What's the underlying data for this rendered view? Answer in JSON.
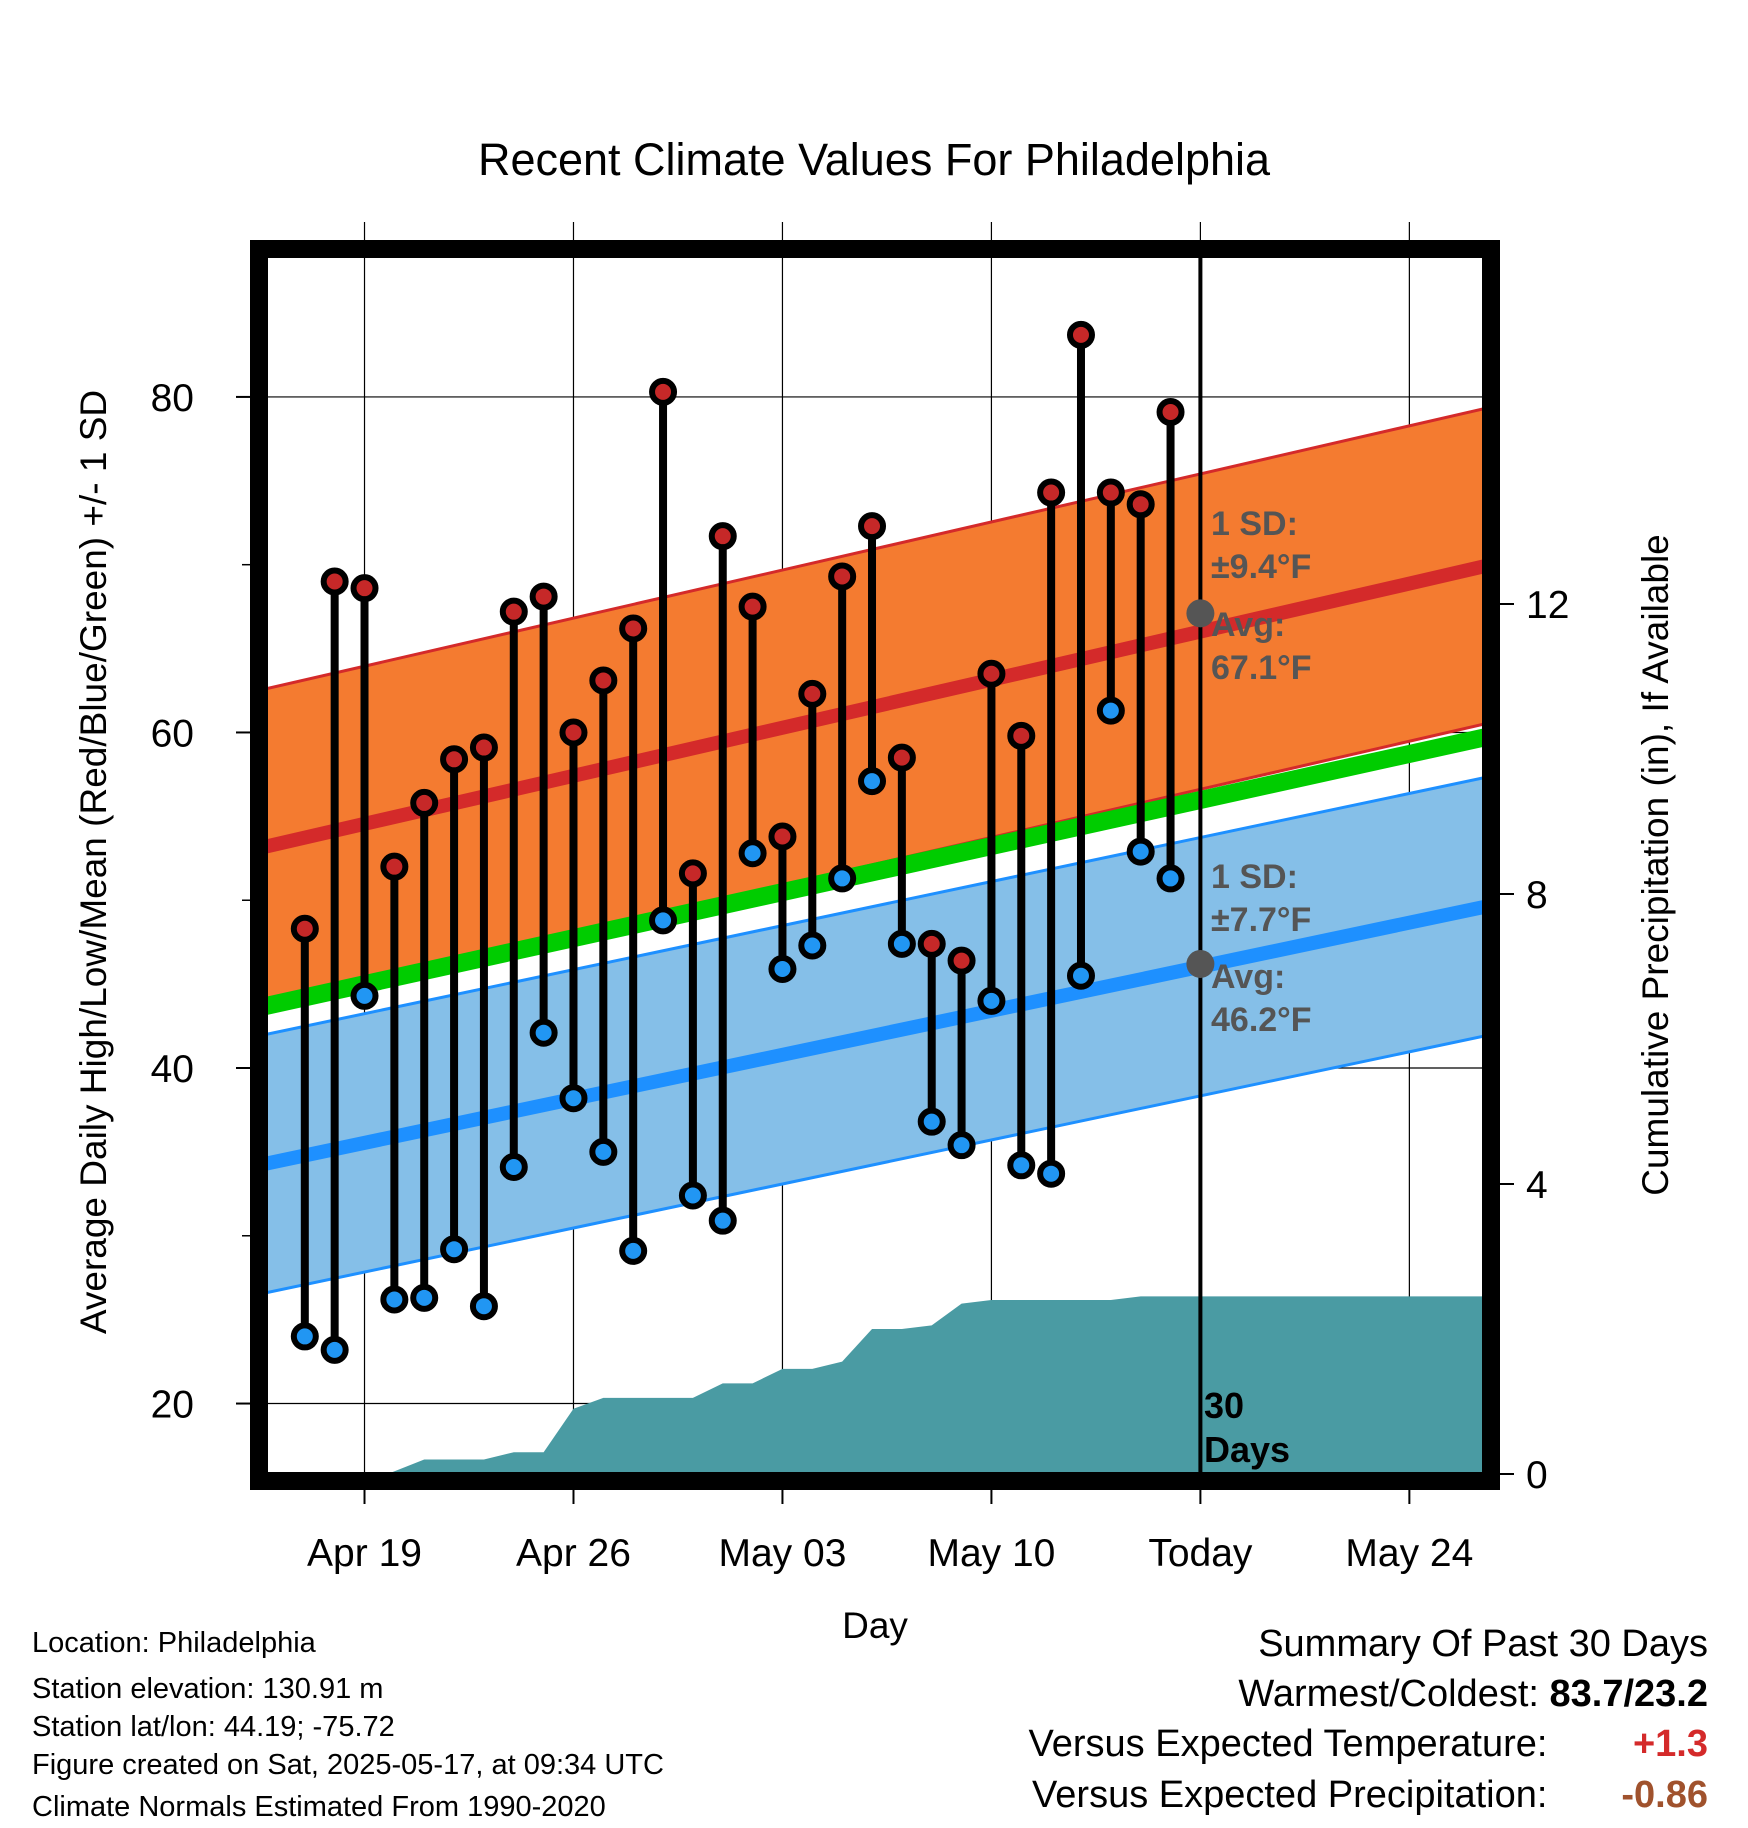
{
  "chart_data": {
    "type": "line",
    "title": "Recent Climate Values For Philadelphia",
    "xlabel": "Day",
    "ylabel": "Average Daily High/Low/Mean (Red/Blue/Green) +/- 1 SD",
    "y2label": "Cumulative Precipitation (in), If Available",
    "ylim": [
      15.8,
      88.4
    ],
    "y2lim": [
      0,
      16.8
    ],
    "xlim": [
      -3.3,
      37.5
    ],
    "x_ticks": [
      {
        "x": 0,
        "label": "Apr 19"
      },
      {
        "x": 7,
        "label": "Apr 26"
      },
      {
        "x": 14,
        "label": "May 03"
      },
      {
        "x": 21,
        "label": "May 10"
      },
      {
        "x": 28,
        "label": "Today"
      },
      {
        "x": 35,
        "label": "May 24"
      }
    ],
    "y_ticks": [
      20,
      40,
      60,
      80
    ],
    "y2_ticks": [
      0,
      4,
      8,
      12
    ],
    "grid": true,
    "normals": {
      "high_avg_start": 53.2,
      "high_avg_end": 69.9,
      "high_sd": 9.4,
      "low_avg_start": 34.3,
      "low_avg_end": 49.6,
      "low_sd": 7.7,
      "mean_start": 43.7,
      "mean_end": 59.7
    },
    "today_marker": {
      "x": 28,
      "label_line1": "30",
      "label_line2": "Days"
    },
    "high_annotation": {
      "line1": "1 SD:",
      "line2": "±9.4°F",
      "line3": "Avg:",
      "line4": "67.1°F",
      "avg_value": 67.1
    },
    "low_annotation": {
      "line1": "1 SD:",
      "line2": "±7.7°F",
      "line3": "Avg:",
      "line4": "46.2°F",
      "avg_value": 46.2
    },
    "days": [
      {
        "x": -2,
        "high": 48.3,
        "low": 24.0
      },
      {
        "x": -1,
        "high": 69.0,
        "low": 23.2
      },
      {
        "x": 0,
        "high": 68.6,
        "low": 44.3
      },
      {
        "x": 1,
        "high": 52.0,
        "low": 26.2
      },
      {
        "x": 2,
        "high": 55.8,
        "low": 26.3
      },
      {
        "x": 3,
        "high": 58.4,
        "low": 29.2
      },
      {
        "x": 4,
        "high": 59.1,
        "low": 25.8
      },
      {
        "x": 5,
        "high": 67.2,
        "low": 34.1
      },
      {
        "x": 6,
        "high": 68.1,
        "low": 42.1
      },
      {
        "x": 7,
        "high": 60.0,
        "low": 38.2
      },
      {
        "x": 8,
        "high": 63.1,
        "low": 35.0
      },
      {
        "x": 9,
        "high": 66.2,
        "low": 29.1
      },
      {
        "x": 10,
        "high": 80.3,
        "low": 48.8
      },
      {
        "x": 11,
        "high": 51.6,
        "low": 32.4
      },
      {
        "x": 12,
        "high": 71.7,
        "low": 30.9
      },
      {
        "x": 13,
        "high": 67.5,
        "low": 52.8
      },
      {
        "x": 14,
        "high": 53.8,
        "low": 45.9
      },
      {
        "x": 15,
        "high": 62.3,
        "low": 47.3
      },
      {
        "x": 16,
        "high": 69.3,
        "low": 51.3
      },
      {
        "x": 17,
        "high": 72.3,
        "low": 57.1
      },
      {
        "x": 18,
        "high": 58.5,
        "low": 47.4
      },
      {
        "x": 19,
        "high": 47.4,
        "low": 36.8
      },
      {
        "x": 20,
        "high": 46.4,
        "low": 35.4
      },
      {
        "x": 21,
        "high": 63.5,
        "low": 44.0
      },
      {
        "x": 22,
        "high": 59.8,
        "low": 34.2
      },
      {
        "x": 23,
        "high": 74.3,
        "low": 33.7
      },
      {
        "x": 24,
        "high": 83.7,
        "low": 45.5
      },
      {
        "x": 25,
        "high": 74.3,
        "low": 61.3
      },
      {
        "x": 26,
        "high": 73.6,
        "low": 52.9
      },
      {
        "x": 27,
        "high": 79.1,
        "low": 51.3
      }
    ],
    "precip": {
      "x": [
        -2,
        0,
        0.9,
        2,
        3,
        4,
        5,
        6,
        7,
        8,
        9,
        10,
        11,
        12,
        13,
        14,
        15,
        16,
        17,
        18,
        19,
        20,
        21,
        22,
        23,
        24,
        25,
        26,
        27,
        28,
        37.5
      ],
      "y": [
        0,
        0,
        0.02,
        0.2,
        0.2,
        0.2,
        0.3,
        0.3,
        0.9,
        1.05,
        1.05,
        1.05,
        1.05,
        1.25,
        1.25,
        1.45,
        1.45,
        1.55,
        2.0,
        2.0,
        2.05,
        2.35,
        2.4,
        2.4,
        2.4,
        2.4,
        2.4,
        2.45,
        2.45,
        2.45,
        2.45
      ]
    },
    "colors": {
      "high_band": "#f47b30",
      "high_line": "#d42a2a",
      "mean_line": "#00cc00",
      "low_band": "#85bfe8",
      "low_line": "#1e90ff",
      "precip": "#4a9ba3",
      "high_marker": "#c62828",
      "low_marker": "#2196f3",
      "anno": "#555555"
    }
  },
  "footer": {
    "location": "Location: Philadelphia",
    "elevation": "Station elevation: 130.91 m",
    "latlon": "Station lat/lon: 44.19; -75.72",
    "created": "Figure created on Sat, 2025-05-17, at 09:34 UTC",
    "normals": "Climate Normals Estimated From 1990-2020"
  },
  "summary": {
    "heading": "Summary Of Past 30 Days",
    "warm_cold_label": "Warmest/Coldest:",
    "warm_cold_value": "83.7/23.2",
    "temp_label": "Versus Expected Temperature:",
    "temp_value": "+1.3",
    "temp_color": "#d42a2a",
    "precip_label": "Versus Expected Precipitation:",
    "precip_value": "-0.86",
    "precip_color": "#a0522d"
  }
}
